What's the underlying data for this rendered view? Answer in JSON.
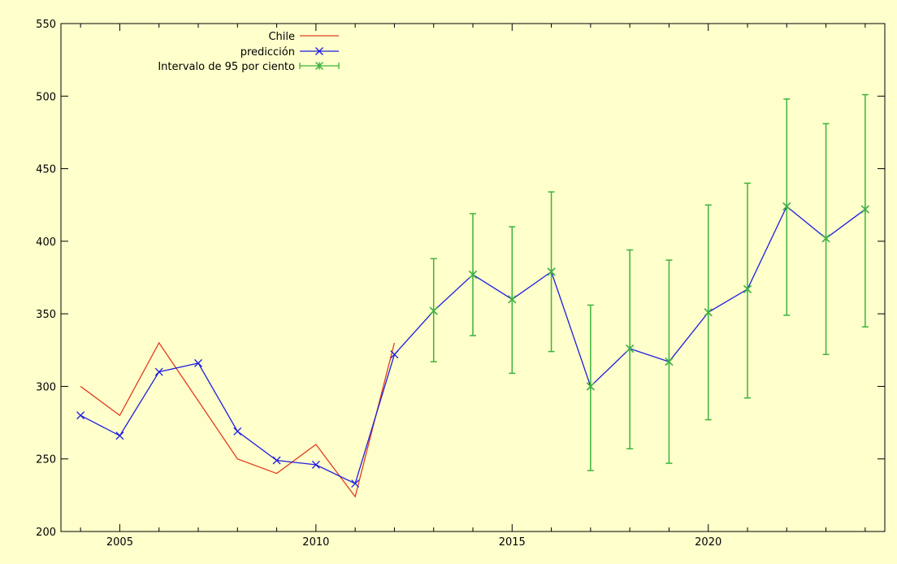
{
  "chart_data": {
    "type": "line",
    "title": "",
    "xlabel": "",
    "ylabel": "",
    "xlim": [
      2003.5,
      2024.5
    ],
    "ylim": [
      200,
      550
    ],
    "x_ticks": [
      2005,
      2010,
      2015,
      2020
    ],
    "y_ticks": [
      200,
      250,
      300,
      350,
      400,
      450,
      500,
      550
    ],
    "grid": false,
    "legend_position": "top-left",
    "colors": {
      "background": "#ffffcc",
      "chile": "#e03c1e",
      "prediccion": "#1e1ee0",
      "interval": "#3cb43c"
    },
    "series": [
      {
        "name": "Chile",
        "x": [
          2004,
          2005,
          2006,
          2007,
          2008,
          2009,
          2010,
          2011,
          2012
        ],
        "values": [
          300,
          280,
          330,
          290,
          250,
          240,
          260,
          224,
          330
        ]
      },
      {
        "name": "predicción",
        "x": [
          2004,
          2005,
          2006,
          2007,
          2008,
          2009,
          2010,
          2011,
          2012,
          2013,
          2014,
          2015,
          2016,
          2017,
          2018,
          2019,
          2020,
          2021,
          2022,
          2023,
          2024
        ],
        "values": [
          280,
          266,
          310,
          316,
          269,
          249,
          246,
          233,
          322,
          352,
          377,
          360,
          379,
          300,
          326,
          317,
          351,
          367,
          424,
          402,
          422
        ]
      },
      {
        "name": "Intervalo de 95 por ciento",
        "x": [
          2013,
          2014,
          2015,
          2016,
          2017,
          2018,
          2019,
          2020,
          2021,
          2022,
          2023,
          2024
        ],
        "values": [
          352,
          377,
          360,
          379,
          300,
          326,
          317,
          351,
          367,
          424,
          402,
          422
        ],
        "lower": [
          317,
          335,
          309,
          324,
          242,
          257,
          247,
          277,
          292,
          349,
          322,
          341
        ],
        "upper": [
          388,
          419,
          410,
          434,
          356,
          394,
          387,
          425,
          440,
          498,
          481,
          501
        ]
      }
    ]
  }
}
